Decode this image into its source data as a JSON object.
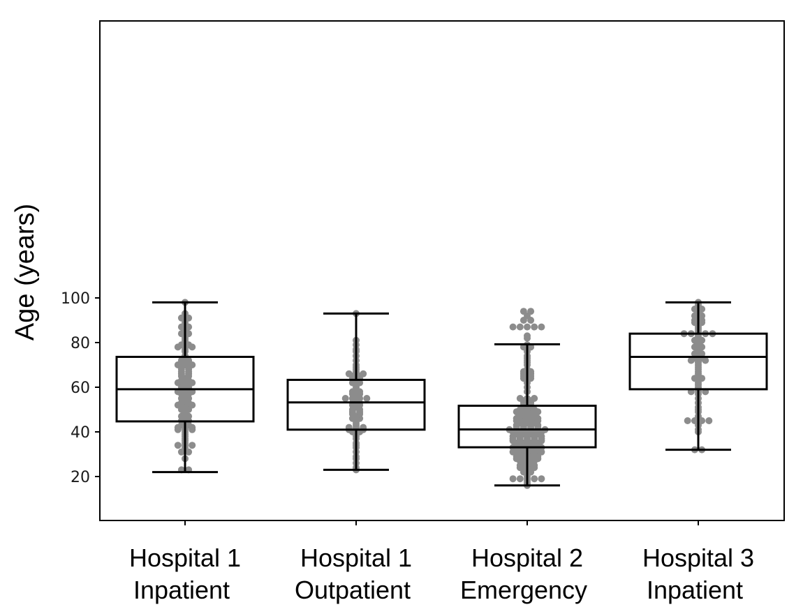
{
  "chart_data": {
    "type": "box-swarm",
    "ylabel": "Age (years)",
    "ylim": [
      12,
      102
    ],
    "yticks": [
      20,
      40,
      60,
      80,
      100
    ],
    "grid": false,
    "legend": "none",
    "colors": {
      "box": "#000000",
      "point": "#8c8c8c"
    },
    "groups": [
      {
        "label_line1": "Hospital 1",
        "label_line2": "Inpatient",
        "whisker_low": 22,
        "q1": 44.7,
        "median": 59.1,
        "q3": 73.6,
        "whisker_high": 98,
        "points": [
          23,
          23,
          28,
          31,
          31,
          32,
          33,
          34,
          34,
          34,
          35,
          36,
          37,
          38,
          39,
          40,
          41,
          41,
          41,
          42,
          42,
          42,
          43,
          43,
          44,
          45,
          45,
          46,
          47,
          47,
          48,
          49,
          50,
          50,
          51,
          51,
          52,
          52,
          52,
          53,
          53,
          54,
          55,
          55,
          56,
          57,
          57,
          58,
          58,
          58,
          59,
          60,
          60,
          61,
          61,
          62,
          62,
          62,
          63,
          63,
          64,
          65,
          65,
          66,
          66,
          67,
          67,
          68,
          68,
          69,
          69,
          70,
          70,
          70,
          71,
          71,
          72,
          72,
          73,
          74,
          76,
          77,
          78,
          78,
          78,
          79,
          79,
          80,
          81,
          82,
          83,
          84,
          84,
          85,
          86,
          87,
          87,
          88,
          89,
          90,
          91,
          91,
          92,
          93,
          98
        ]
      },
      {
        "label_line1": "Hospital 1",
        "label_line2": "Outpatient",
        "whisker_low": 23,
        "q1": 41,
        "median": 53.2,
        "q3": 63.3,
        "whisker_high": 93,
        "points": [
          23,
          24,
          26,
          28,
          29,
          31,
          33,
          34,
          35,
          37,
          38,
          39,
          40,
          40,
          41,
          41,
          41,
          42,
          42,
          42,
          43,
          44,
          45,
          46,
          46,
          47,
          48,
          48,
          49,
          49,
          50,
          50,
          51,
          52,
          52,
          53,
          53,
          54,
          55,
          55,
          55,
          55,
          56,
          57,
          57,
          58,
          58,
          59,
          60,
          61,
          62,
          62,
          63,
          64,
          64,
          65,
          65,
          66,
          66,
          66,
          67,
          68,
          69,
          70,
          72,
          74,
          76,
          77,
          79,
          81,
          93
        ]
      },
      {
        "label_line1": "Hospital 2",
        "label_line2": "Emergency",
        "whisker_low": 16,
        "q1": 33.1,
        "median": 41.1,
        "q3": 51.7,
        "whisker_high": 79.2,
        "points": [
          16,
          17,
          18,
          19,
          19,
          19,
          19,
          19,
          20,
          21,
          22,
          22,
          23,
          23,
          24,
          24,
          24,
          25,
          25,
          25,
          26,
          26,
          27,
          27,
          27,
          28,
          28,
          28,
          28,
          29,
          29,
          29,
          29,
          30,
          30,
          30,
          31,
          31,
          31,
          31,
          31,
          32,
          32,
          32,
          32,
          33,
          33,
          33,
          33,
          33,
          34,
          34,
          34,
          34,
          35,
          35,
          35,
          35,
          36,
          36,
          36,
          36,
          36,
          37,
          37,
          37,
          37,
          37,
          38,
          38,
          38,
          38,
          38,
          39,
          39,
          39,
          39,
          40,
          40,
          40,
          40,
          40,
          41,
          41,
          41,
          41,
          41,
          41,
          42,
          42,
          42,
          42,
          43,
          43,
          43,
          43,
          44,
          44,
          44,
          45,
          45,
          45,
          45,
          46,
          46,
          46,
          46,
          47,
          47,
          47,
          48,
          48,
          48,
          49,
          49,
          49,
          49,
          50,
          50,
          50,
          51,
          51,
          52,
          52,
          53,
          53,
          54,
          54,
          55,
          55,
          55,
          58,
          60,
          62,
          63,
          64,
          64,
          65,
          65,
          66,
          66,
          67,
          67,
          68,
          70,
          71,
          72,
          73,
          74,
          76,
          77,
          78,
          78,
          79,
          82,
          83,
          87,
          87,
          87,
          87,
          87,
          90,
          90,
          92,
          94,
          94
        ]
      },
      {
        "label_line1": "Hospital 3",
        "label_line2": "Inpatient",
        "whisker_low": 32,
        "q1": 59.1,
        "median": 73.6,
        "q3": 84,
        "whisker_high": 98,
        "points": [
          32,
          32,
          40,
          41,
          43,
          45,
          45,
          45,
          45,
          47,
          49,
          50,
          51,
          53,
          55,
          57,
          58,
          58,
          58,
          59,
          60,
          61,
          62,
          63,
          64,
          64,
          65,
          66,
          67,
          68,
          69,
          70,
          71,
          72,
          72,
          72,
          73,
          73,
          74,
          75,
          75,
          76,
          77,
          78,
          78,
          79,
          80,
          81,
          81,
          82,
          83,
          84,
          84,
          84,
          84,
          84,
          85,
          86,
          87,
          88,
          89,
          89,
          90,
          90,
          91,
          92,
          92,
          93,
          94,
          95,
          95,
          96,
          97,
          98
        ]
      }
    ]
  }
}
